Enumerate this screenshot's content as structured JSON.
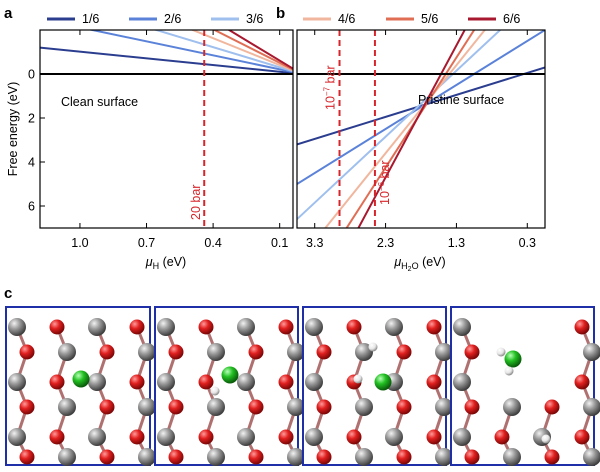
{
  "panel_labels": {
    "a": "a",
    "b": "b",
    "c": "c"
  },
  "legend": [
    {
      "label": "1/6",
      "color": "#2b3d8f"
    },
    {
      "label": "2/6",
      "color": "#5b82d9"
    },
    {
      "label": "3/6",
      "color": "#9fbfee"
    },
    {
      "label": "4/6",
      "color": "#f1b79e"
    },
    {
      "label": "5/6",
      "color": "#e06e55"
    },
    {
      "label": "6/6",
      "color": "#a8182e"
    }
  ],
  "chart_data": [
    {
      "panel": "a",
      "type": "line",
      "xlabel_symbol": "μ",
      "xlabel_sub": "H",
      "xlabel_unit": " (eV)",
      "ylabel": "Free energy (eV)",
      "xlim": [
        1.18,
        0.04
      ],
      "ylim": [
        -2.0,
        7.0
      ],
      "x_reversed": true,
      "y_inverted": true,
      "xticks": [
        1.0,
        0.7,
        0.4,
        0.1
      ],
      "xtick_labels": [
        "1.0",
        "0.7",
        "0.4",
        "0.1"
      ],
      "yticks": [
        0,
        2,
        4,
        6
      ],
      "ytick_labels": [
        "0",
        "2",
        "4",
        "6"
      ],
      "baseline_y": 0,
      "vline": {
        "x": 0.44,
        "label": "20 bar",
        "color": "#d7262b"
      },
      "annotation": "Clean surface",
      "series": [
        {
          "name": "1/6",
          "color": "#2b3d8f",
          "x": [
            1.18,
            0.0
          ],
          "y": [
            -1.2,
            0.0
          ]
        },
        {
          "name": "2/6",
          "color": "#5b82d9",
          "x": [
            1.18,
            0.0
          ],
          "y": [
            -2.5,
            0.0
          ]
        },
        {
          "name": "3/6",
          "color": "#9fbfee",
          "x": [
            1.18,
            0.0
          ],
          "y": [
            -3.6,
            0.0
          ]
        },
        {
          "name": "4/6",
          "color": "#f1b79e",
          "x": [
            1.18,
            0.0
          ],
          "y": [
            -4.8,
            0.0
          ]
        },
        {
          "name": "5/6",
          "color": "#e06e55",
          "x": [
            1.18,
            0.0
          ],
          "y": [
            -6.0,
            0.0
          ]
        },
        {
          "name": "6/6",
          "color": "#a8182e",
          "x": [
            1.18,
            0.0
          ],
          "y": [
            -7.2,
            0.0
          ]
        }
      ]
    },
    {
      "panel": "b",
      "type": "line",
      "xlabel_symbol": "μ",
      "xlabel_sub": "H",
      "xlabel_subsub": "2",
      "xlabel_sub2": "O",
      "xlabel_unit": " (eV)",
      "xlim": [
        3.55,
        0.05
      ],
      "ylim": [
        -2.0,
        7.0
      ],
      "x_reversed": true,
      "y_inverted": true,
      "xticks": [
        3.3,
        2.3,
        1.3,
        0.3
      ],
      "xtick_labels": [
        "3.3",
        "2.3",
        "1.3",
        "0.3"
      ],
      "baseline_y": 0,
      "vlines": [
        {
          "x": 2.95,
          "label_base": "10",
          "label_exp": "−7",
          "label_unit": " bar",
          "color": "#d7262b"
        },
        {
          "x": 2.45,
          "label_base": "10",
          "label_exp": "−6",
          "label_unit": " bar",
          "color": "#d7262b"
        }
      ],
      "annotation": "Pristine surface",
      "series": [
        {
          "name": "1/6",
          "color": "#2b3d8f",
          "x": [
            3.55,
            0.05
          ],
          "y": [
            3.2,
            -0.3
          ]
        },
        {
          "name": "2/6",
          "color": "#5b82d9",
          "x": [
            3.55,
            0.05
          ],
          "y": [
            5.0,
            -2.0
          ]
        },
        {
          "name": "3/6",
          "color": "#9fbfee",
          "x": [
            3.55,
            0.05
          ],
          "y": [
            6.6,
            -3.9
          ]
        },
        {
          "name": "4/6",
          "color": "#f1b79e",
          "x": [
            3.55,
            0.05
          ],
          "y": [
            8.6,
            -5.4
          ]
        },
        {
          "name": "5/6",
          "color": "#e06e55",
          "x": [
            3.55,
            0.05
          ],
          "y": [
            10.5,
            -7.0
          ]
        },
        {
          "name": "6/6",
          "color": "#a8182e",
          "x": [
            3.55,
            0.05
          ],
          "y": [
            12.2,
            -8.8
          ]
        }
      ]
    }
  ],
  "atom_colors": {
    "oxygen": "#d7191c",
    "metal": "#8c8c8c",
    "chlorine": "#1db31d",
    "hydrogen": "#e8e8e8",
    "frame": "#1f2fa8"
  }
}
